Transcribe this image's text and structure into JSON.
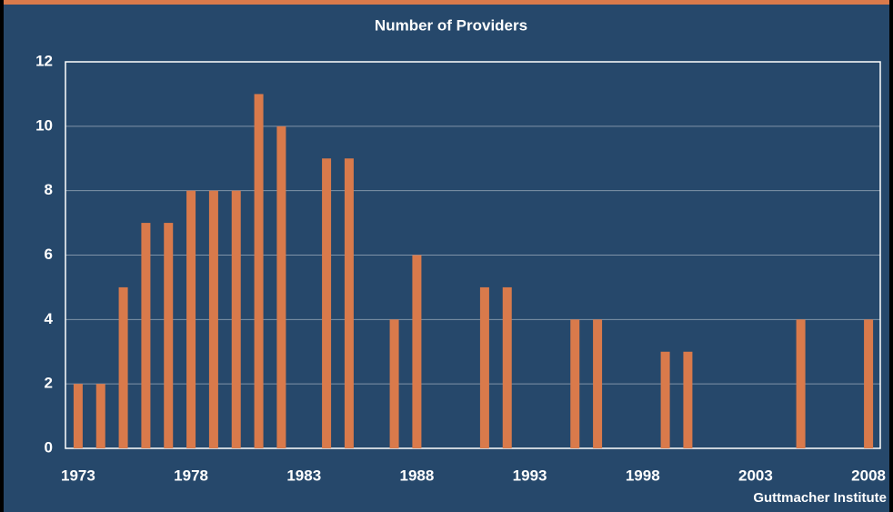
{
  "chart_data": {
    "type": "bar",
    "title": "Number of Providers",
    "source": "Guttmacher Institute",
    "x": [
      1973,
      1974,
      1975,
      1976,
      1977,
      1978,
      1979,
      1980,
      1981,
      1982,
      1984,
      1985,
      1987,
      1988,
      1991,
      1992,
      1995,
      1996,
      1999,
      2000,
      2005,
      2008
    ],
    "values": [
      2,
      2,
      5,
      7,
      7,
      8,
      8,
      8,
      11,
      10,
      9,
      9,
      4,
      6,
      5,
      5,
      4,
      4,
      3,
      3,
      4,
      4
    ],
    "color": "#d97a4b",
    "xlim": [
      1972.44,
      2008.52
    ],
    "xticks": [
      1973,
      1978,
      1983,
      1988,
      1993,
      1998,
      2003,
      2008
    ],
    "ylim": [
      0,
      12
    ],
    "yticks": [
      0,
      2,
      4,
      6,
      8,
      10,
      12
    ],
    "grid": true
  }
}
